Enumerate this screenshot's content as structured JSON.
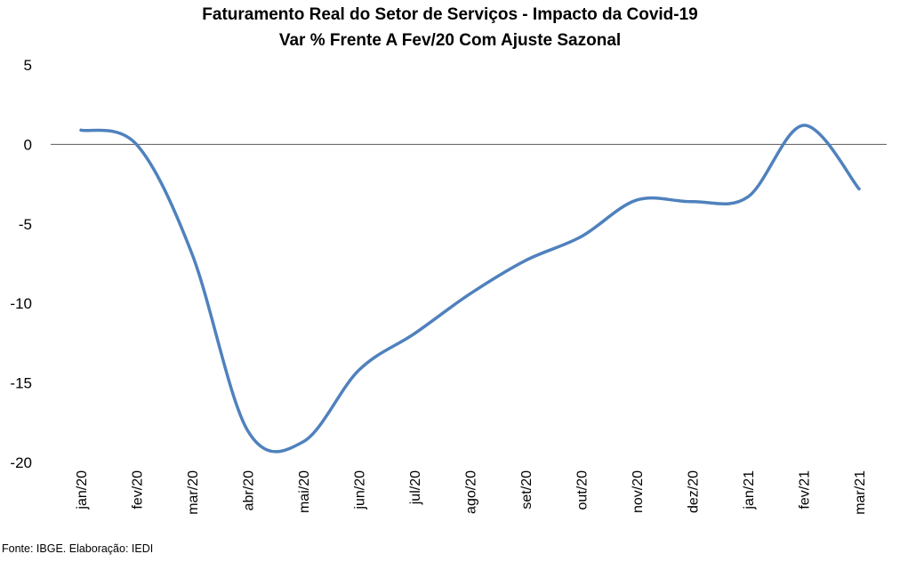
{
  "chart_data": {
    "type": "line",
    "title": "Faturamento Real do Setor de Serviços - Impacto da Covid-19",
    "subtitle": "Var % Frente A Fev/20 Com Ajuste Sazonal",
    "xlabel": "",
    "ylabel": "",
    "categories": [
      "jan/20",
      "fev/20",
      "mar/20",
      "abr/20",
      "mai/20",
      "jun/20",
      "jul/20",
      "ago/20",
      "set/20",
      "out/20",
      "nov/20",
      "dez/20",
      "jan/21",
      "fev/21",
      "mar/21"
    ],
    "series": [
      {
        "values": [
          0.9,
          0.0,
          -6.9,
          -18.0,
          -18.7,
          -14.2,
          -11.9,
          -9.4,
          -7.3,
          -5.8,
          -3.5,
          -3.6,
          -3.3,
          1.2,
          -2.8
        ],
        "color": "#4f81bd"
      }
    ],
    "ylim": [
      -20,
      5
    ],
    "yticks": [
      5,
      0,
      -5,
      -10,
      -15,
      -20
    ],
    "grid": false,
    "legend": "none"
  },
  "source": "Fonte: IBGE. Elaboração: IEDI"
}
